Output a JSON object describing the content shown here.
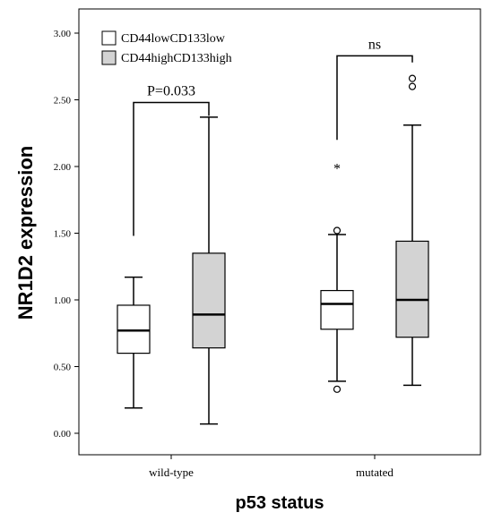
{
  "chart_data": {
    "type": "boxplot",
    "xlabel": "p53 status",
    "ylabel": "NR1D2 expression",
    "ylim": [
      0,
      3
    ],
    "yticks": [
      "0.00",
      "0.50",
      "1.00",
      "1.50",
      "2.00",
      "2.50",
      "3.00"
    ],
    "grid": false,
    "legend_position": "top-left",
    "categories": [
      "wild-type",
      "mutated"
    ],
    "series": [
      {
        "name": "CD44lowCD133low",
        "fill": "#ffffff",
        "boxes": [
          {
            "category": "wild-type",
            "whisker_low": 0.19,
            "q1": 0.6,
            "median": 0.77,
            "q3": 0.96,
            "whisker_high": 1.17,
            "outliers": [],
            "extremes": []
          },
          {
            "category": "mutated",
            "whisker_low": 0.39,
            "q1": 0.78,
            "median": 0.97,
            "q3": 1.07,
            "whisker_high": 1.49,
            "outliers": [
              0.33,
              1.52
            ],
            "extremes": [
              2.01
            ]
          }
        ]
      },
      {
        "name": "CD44highCD133high",
        "fill": "#d3d3d3",
        "boxes": [
          {
            "category": "wild-type",
            "whisker_low": 0.07,
            "q1": 0.64,
            "median": 0.89,
            "q3": 1.35,
            "whisker_high": 2.37,
            "outliers": [],
            "extremes": []
          },
          {
            "category": "mutated",
            "whisker_low": 0.36,
            "q1": 0.72,
            "median": 1.0,
            "q3": 1.44,
            "whisker_high": 2.31,
            "outliers": [
              2.6,
              2.66
            ],
            "extremes": []
          }
        ]
      }
    ],
    "annotations": [
      {
        "text": "P=0.033",
        "category": "wild-type",
        "left_y": 1.48,
        "right_y": 2.38,
        "top_y": 2.48
      },
      {
        "text": "ns",
        "category": "mutated",
        "left_y": 2.2,
        "right_y": 2.78,
        "top_y": 2.83
      }
    ]
  }
}
